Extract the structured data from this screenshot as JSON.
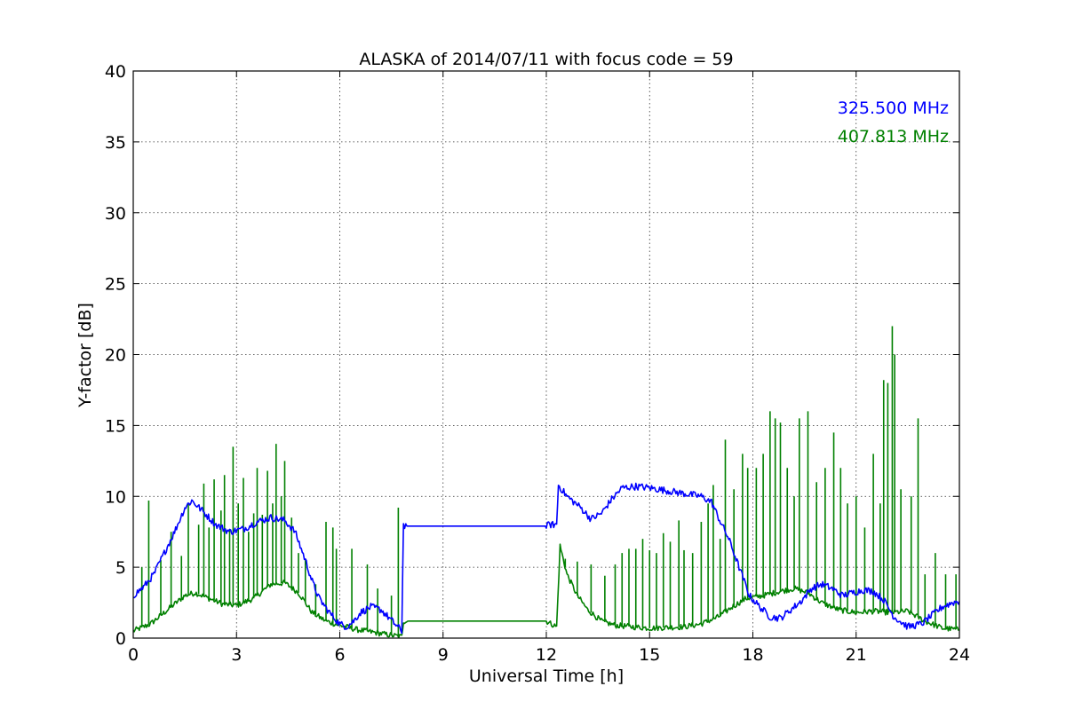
{
  "chart_data": {
    "type": "line",
    "title": "ALASKA of 2014/07/11 with focus code = 59",
    "xlabel": "Universal Time [h]",
    "ylabel": "Y-factor [dB]",
    "xlim": [
      0,
      24
    ],
    "ylim": [
      0,
      40
    ],
    "xticks": [
      0,
      3,
      6,
      9,
      12,
      15,
      18,
      21,
      24
    ],
    "yticks": [
      0,
      5,
      10,
      15,
      20,
      25,
      30,
      35,
      40
    ],
    "grid": true,
    "legend_position": "top-right",
    "series": [
      {
        "name": "325.500 MHz",
        "color": "#0000ff",
        "points": [
          [
            0,
            3.0
          ],
          [
            0.3,
            3.6
          ],
          [
            0.6,
            4.5
          ],
          [
            0.9,
            6.0
          ],
          [
            1.2,
            7.5
          ],
          [
            1.5,
            9.2
          ],
          [
            1.7,
            9.7
          ],
          [
            2.0,
            9.0
          ],
          [
            2.4,
            8.0
          ],
          [
            2.8,
            7.5
          ],
          [
            3.2,
            7.7
          ],
          [
            3.6,
            8.2
          ],
          [
            4.0,
            8.5
          ],
          [
            4.4,
            8.3
          ],
          [
            4.7,
            7.5
          ],
          [
            5.0,
            5.5
          ],
          [
            5.2,
            4.0
          ],
          [
            5.4,
            2.8
          ],
          [
            5.7,
            1.8
          ],
          [
            6.0,
            1.0
          ],
          [
            6.2,
            0.8
          ],
          [
            6.4,
            1.2
          ],
          [
            6.6,
            1.8
          ],
          [
            6.9,
            2.2
          ],
          [
            7.2,
            2.0
          ],
          [
            7.4,
            1.5
          ],
          [
            7.6,
            1.0
          ],
          [
            7.8,
            0.5
          ],
          [
            7.85,
            8.0
          ],
          [
            7.95,
            7.9
          ],
          [
            12.0,
            7.9
          ],
          [
            12.1,
            8.0
          ],
          [
            12.3,
            8.0
          ],
          [
            12.35,
            10.8
          ],
          [
            12.6,
            10.0
          ],
          [
            13.0,
            9.2
          ],
          [
            13.3,
            8.4
          ],
          [
            13.6,
            8.8
          ],
          [
            13.9,
            9.8
          ],
          [
            14.2,
            10.6
          ],
          [
            14.6,
            10.7
          ],
          [
            15.0,
            10.6
          ],
          [
            15.5,
            10.4
          ],
          [
            16.0,
            10.2
          ],
          [
            16.5,
            10.0
          ],
          [
            16.8,
            9.6
          ],
          [
            17.0,
            8.5
          ],
          [
            17.3,
            7.0
          ],
          [
            17.6,
            5.0
          ],
          [
            17.9,
            3.0
          ],
          [
            18.2,
            2.2
          ],
          [
            18.5,
            1.5
          ],
          [
            18.8,
            1.4
          ],
          [
            19.1,
            2.0
          ],
          [
            19.4,
            2.6
          ],
          [
            19.7,
            3.5
          ],
          [
            20.0,
            3.8
          ],
          [
            20.3,
            3.5
          ],
          [
            20.6,
            3.0
          ],
          [
            20.9,
            3.2
          ],
          [
            21.2,
            3.4
          ],
          [
            21.5,
            3.3
          ],
          [
            21.8,
            2.7
          ],
          [
            22.1,
            1.5
          ],
          [
            22.5,
            0.8
          ],
          [
            22.9,
            1.0
          ],
          [
            23.2,
            1.6
          ],
          [
            23.5,
            2.2
          ],
          [
            23.8,
            2.5
          ],
          [
            24,
            2.6
          ]
        ]
      },
      {
        "name": "407.813 MHz",
        "color": "#008000",
        "points": [
          [
            0,
            0.5
          ],
          [
            0.5,
            1.0
          ],
          [
            1.0,
            2.0
          ],
          [
            1.5,
            3.0
          ],
          [
            1.8,
            3.2
          ],
          [
            2.2,
            2.8
          ],
          [
            2.6,
            2.4
          ],
          [
            3.0,
            2.3
          ],
          [
            3.5,
            2.8
          ],
          [
            4.0,
            3.8
          ],
          [
            4.4,
            3.9
          ],
          [
            4.8,
            3.2
          ],
          [
            5.2,
            1.8
          ],
          [
            5.6,
            1.2
          ],
          [
            6.0,
            0.9
          ],
          [
            6.5,
            0.6
          ],
          [
            7.0,
            0.4
          ],
          [
            7.5,
            0.2
          ],
          [
            7.8,
            0.1
          ],
          [
            7.85,
            1.2
          ],
          [
            8.0,
            1.2
          ],
          [
            12.0,
            1.2
          ],
          [
            12.3,
            0.8
          ],
          [
            12.4,
            6.5
          ],
          [
            12.6,
            4.5
          ],
          [
            12.9,
            3.0
          ],
          [
            13.2,
            2.0
          ],
          [
            13.6,
            1.2
          ],
          [
            14.0,
            0.9
          ],
          [
            15.0,
            0.7
          ],
          [
            16.0,
            0.8
          ],
          [
            16.5,
            1.0
          ],
          [
            17.0,
            1.5
          ],
          [
            17.4,
            2.2
          ],
          [
            17.8,
            2.8
          ],
          [
            18.3,
            3.0
          ],
          [
            18.8,
            3.3
          ],
          [
            19.2,
            3.5
          ],
          [
            19.6,
            3.2
          ],
          [
            20.0,
            2.5
          ],
          [
            20.5,
            2.0
          ],
          [
            21.0,
            1.8
          ],
          [
            21.5,
            1.9
          ],
          [
            22.0,
            1.8
          ],
          [
            22.5,
            1.9
          ],
          [
            23.0,
            1.2
          ],
          [
            23.5,
            0.7
          ],
          [
            24,
            0.6
          ]
        ],
        "spikes": [
          [
            0.25,
            5.0
          ],
          [
            0.45,
            9.7
          ],
          [
            0.8,
            5.5
          ],
          [
            1.1,
            7.5
          ],
          [
            1.4,
            5.8
          ],
          [
            1.6,
            9.5
          ],
          [
            1.9,
            8.0
          ],
          [
            2.05,
            10.9
          ],
          [
            2.2,
            7.8
          ],
          [
            2.35,
            11.2
          ],
          [
            2.55,
            9.0
          ],
          [
            2.65,
            11.5
          ],
          [
            2.8,
            7.7
          ],
          [
            2.9,
            13.5
          ],
          [
            3.05,
            9.5
          ],
          [
            3.2,
            11.3
          ],
          [
            3.35,
            7.5
          ],
          [
            3.5,
            8.8
          ],
          [
            3.6,
            12.0
          ],
          [
            3.75,
            8.7
          ],
          [
            3.9,
            11.8
          ],
          [
            4.05,
            9.5
          ],
          [
            4.15,
            13.7
          ],
          [
            4.3,
            10.0
          ],
          [
            4.4,
            12.5
          ],
          [
            4.6,
            8.5
          ],
          [
            4.8,
            6.0
          ],
          [
            5.0,
            5.5
          ],
          [
            5.3,
            3.8
          ],
          [
            5.6,
            8.2
          ],
          [
            5.8,
            7.8
          ],
          [
            5.9,
            6.3
          ],
          [
            6.35,
            6.3
          ],
          [
            6.8,
            5.2
          ],
          [
            7.1,
            3.5
          ],
          [
            7.5,
            3.0
          ],
          [
            7.7,
            9.2
          ],
          [
            12.55,
            5.6
          ],
          [
            12.9,
            5.4
          ],
          [
            13.3,
            5.2
          ],
          [
            13.7,
            4.4
          ],
          [
            14.0,
            5.2
          ],
          [
            14.2,
            6.0
          ],
          [
            14.4,
            6.3
          ],
          [
            14.6,
            6.3
          ],
          [
            14.8,
            7.0
          ],
          [
            15.0,
            6.2
          ],
          [
            15.2,
            6.0
          ],
          [
            15.4,
            7.4
          ],
          [
            15.6,
            6.8
          ],
          [
            15.85,
            8.3
          ],
          [
            16.0,
            6.2
          ],
          [
            16.25,
            6.0
          ],
          [
            16.5,
            8.2
          ],
          [
            16.7,
            9.5
          ],
          [
            16.85,
            10.8
          ],
          [
            17.05,
            7.0
          ],
          [
            17.2,
            14.0
          ],
          [
            17.45,
            10.5
          ],
          [
            17.7,
            13.0
          ],
          [
            17.85,
            12.0
          ],
          [
            18.1,
            12.0
          ],
          [
            18.3,
            13.0
          ],
          [
            18.5,
            16.0
          ],
          [
            18.65,
            15.5
          ],
          [
            18.8,
            15.2
          ],
          [
            19.0,
            12.0
          ],
          [
            19.2,
            10.0
          ],
          [
            19.35,
            15.5
          ],
          [
            19.6,
            16.0
          ],
          [
            19.85,
            11.0
          ],
          [
            20.1,
            12.0
          ],
          [
            20.35,
            14.5
          ],
          [
            20.55,
            12.0
          ],
          [
            20.75,
            9.5
          ],
          [
            21.0,
            10.0
          ],
          [
            21.25,
            7.8
          ],
          [
            21.5,
            13.0
          ],
          [
            21.7,
            9.5
          ],
          [
            21.8,
            18.2
          ],
          [
            21.92,
            18.0
          ],
          [
            22.05,
            22.0
          ],
          [
            22.12,
            20.0
          ],
          [
            22.3,
            10.5
          ],
          [
            22.6,
            10.0
          ],
          [
            22.8,
            15.5
          ],
          [
            23.0,
            4.5
          ],
          [
            23.3,
            6.0
          ],
          [
            23.6,
            4.5
          ],
          [
            23.9,
            4.5
          ]
        ]
      }
    ]
  }
}
